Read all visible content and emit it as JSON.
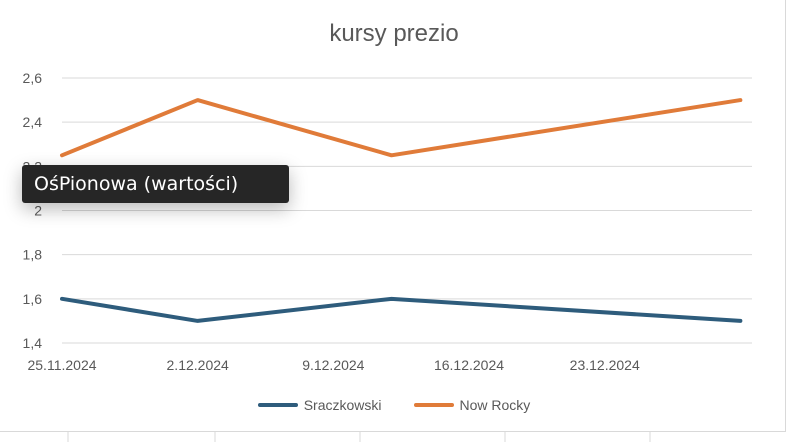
{
  "tooltip": {
    "text": "OśPionowa (wartości)"
  },
  "colors": {
    "series1": "#2e5c7c",
    "series2": "#e07b39",
    "gridline": "#d9d9d9",
    "axis_text": "#595959"
  },
  "chart_data": {
    "type": "line",
    "title": "kursy prezio",
    "xlabel": "",
    "ylabel": "",
    "x_tick_labels": [
      "25.11.2024",
      "2.12.2024",
      "9.12.2024",
      "16.12.2024",
      "23.12.2024"
    ],
    "y_tick_labels": [
      "1,4",
      "1,6",
      "1,8",
      "2",
      "2,2",
      "2,4",
      "2,6"
    ],
    "ylim": [
      1.4,
      2.6
    ],
    "grid": true,
    "legend_position": "bottom",
    "x": [
      "25.11.2024",
      "2.12.2024",
      "12.12.2024",
      "30.12.2024"
    ],
    "series": [
      {
        "name": "Sraczkowski",
        "color": "#2e5c7c",
        "values": [
          1.6,
          1.5,
          1.6,
          1.5
        ]
      },
      {
        "name": "Now Rocky",
        "color": "#e07b39",
        "values": [
          2.25,
          2.5,
          2.25,
          2.5
        ]
      }
    ]
  }
}
